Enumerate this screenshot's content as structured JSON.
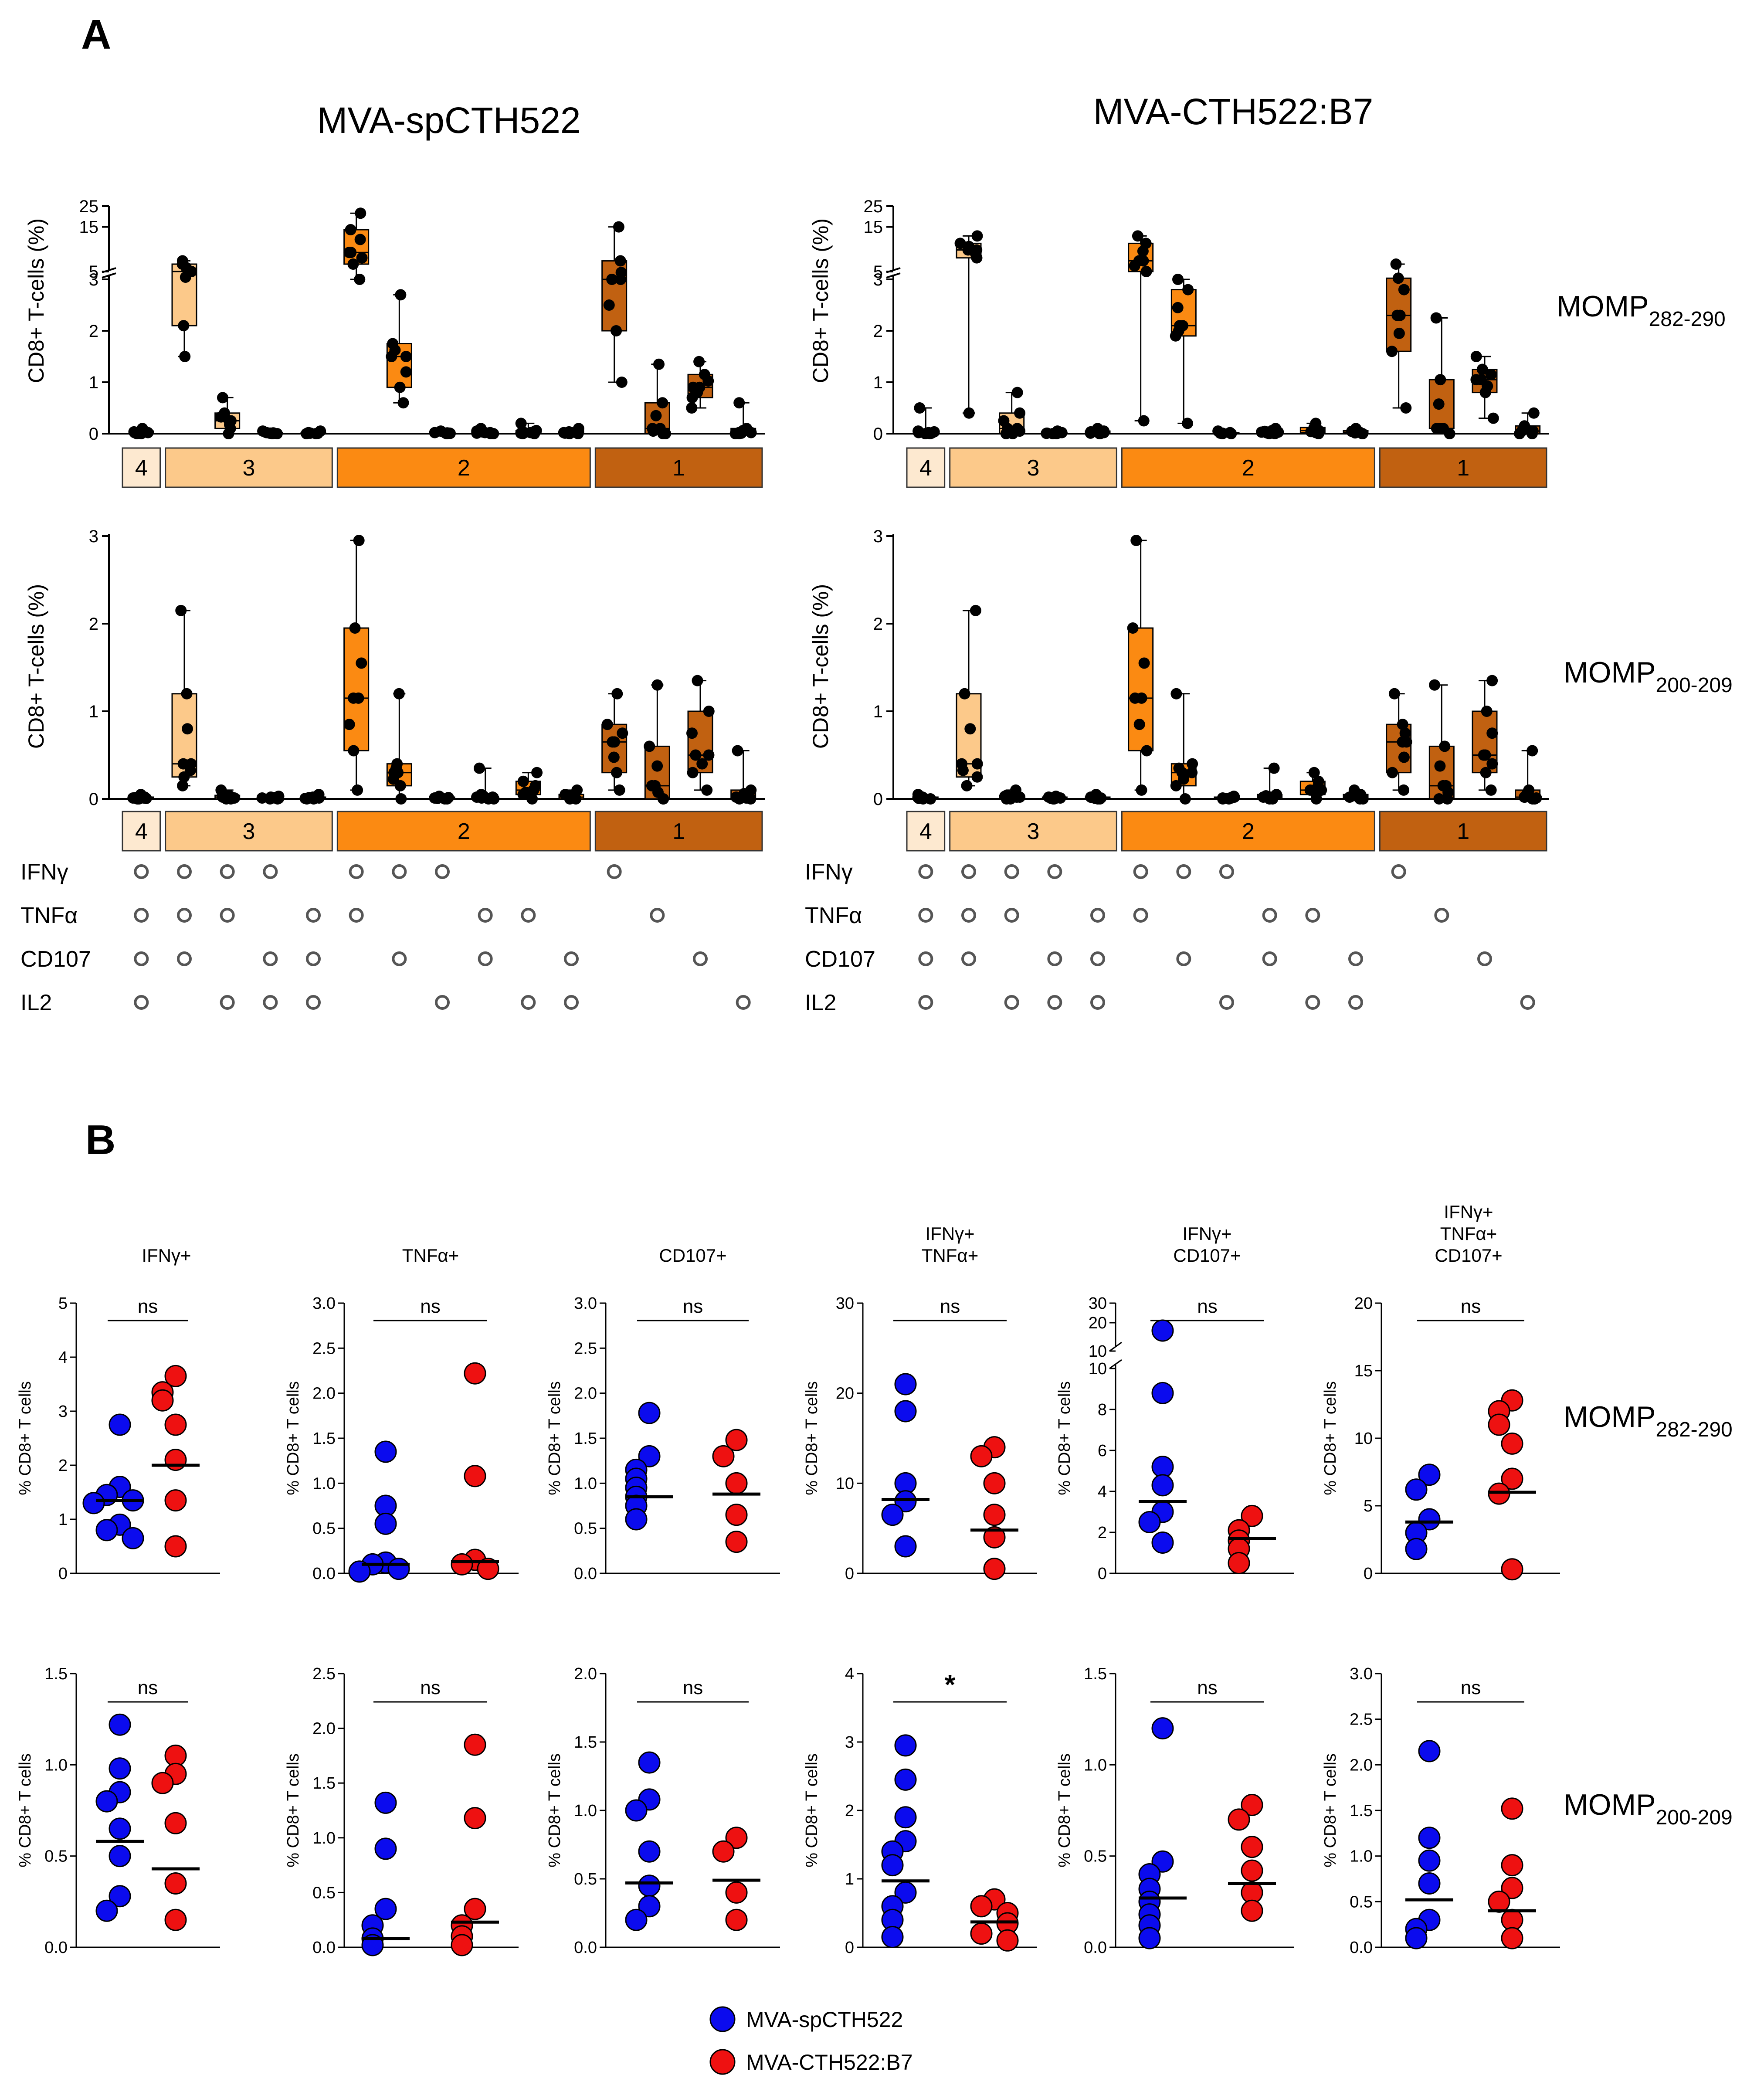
{
  "panel_labels": {
    "a": "A",
    "b": "B"
  },
  "panelA": {
    "col_titles": [
      "MVA-spCTH522",
      "MVA-CTH522:B7"
    ],
    "row_labels": [
      {
        "base": "MOMP",
        "sub": "282-290"
      },
      {
        "base": "MOMP",
        "sub": "200-209"
      }
    ],
    "ylabel": "CD8+ T-cells  (%)",
    "groups": [
      {
        "label": "4",
        "color": "#fde9d0",
        "n": 1
      },
      {
        "label": "3",
        "color": "#fcc98a",
        "n": 4
      },
      {
        "label": "2",
        "color": "#fb8a12",
        "n": 6
      },
      {
        "label": "1",
        "color": "#c16111",
        "n": 4
      }
    ],
    "markers": [
      "IFNγ",
      "TNFα",
      "CD107",
      "IL2"
    ],
    "combos": [
      [
        1,
        1,
        1,
        1
      ],
      [
        1,
        1,
        1,
        0
      ],
      [
        1,
        1,
        0,
        1
      ],
      [
        1,
        0,
        1,
        1
      ],
      [
        0,
        1,
        1,
        1
      ],
      [
        1,
        1,
        0,
        0
      ],
      [
        1,
        0,
        1,
        0
      ],
      [
        1,
        0,
        0,
        1
      ],
      [
        0,
        1,
        1,
        0
      ],
      [
        0,
        1,
        0,
        1
      ],
      [
        0,
        0,
        1,
        1
      ],
      [
        1,
        0,
        0,
        0
      ],
      [
        0,
        1,
        0,
        0
      ],
      [
        0,
        0,
        1,
        0
      ],
      [
        0,
        0,
        0,
        1
      ]
    ],
    "box_colors": [
      "#fde9d0",
      "#fcc98a",
      "#fcc98a",
      "#fcc98a",
      "#fcc98a",
      "#fb8a12",
      "#fb8a12",
      "#fb8a12",
      "#fb8a12",
      "#fb8a12",
      "#fb8a12",
      "#c16111",
      "#c16111",
      "#c16111",
      "#c16111"
    ],
    "top_y_ticks": [
      "0",
      "1",
      "2",
      "3",
      "5",
      "15",
      "25"
    ],
    "bottom_y_ticks": [
      "0",
      "1",
      "2",
      "3"
    ]
  },
  "chart_data": [
    {
      "type": "box",
      "title": "MVA-spCTH522 MOMP282-290",
      "ylabel": "CD8+ T-cells  (%)",
      "y_axis_broken": true,
      "ylim": [
        0,
        25
      ],
      "boxes": [
        {
          "min": 0,
          "q1": 0,
          "med": 0.02,
          "q3": 0.05,
          "max": 0.1
        },
        {
          "min": 1.5,
          "q1": 2.1,
          "med": 5,
          "q3": 6,
          "max": 6.5
        },
        {
          "min": 0,
          "q1": 0.1,
          "med": 0.25,
          "q3": 0.4,
          "max": 0.7
        },
        {
          "min": 0,
          "q1": 0,
          "med": 0.01,
          "q3": 0.02,
          "max": 0.05
        },
        {
          "min": 0,
          "q1": 0,
          "med": 0.01,
          "q3": 0.02,
          "max": 0.05
        },
        {
          "min": 3,
          "q1": 6,
          "med": 8,
          "q3": 14,
          "max": 21
        },
        {
          "min": 0.6,
          "q1": 0.9,
          "med": 1.5,
          "q3": 1.75,
          "max": 2.7
        },
        {
          "min": 0,
          "q1": 0,
          "med": 0.01,
          "q3": 0.02,
          "max": 0.05
        },
        {
          "min": 0,
          "q1": 0,
          "med": 0.02,
          "q3": 0.05,
          "max": 0.1
        },
        {
          "min": 0,
          "q1": 0,
          "med": 0.02,
          "q3": 0.06,
          "max": 0.2
        },
        {
          "min": 0,
          "q1": 0,
          "med": 0.02,
          "q3": 0.05,
          "max": 0.1
        },
        {
          "min": 1,
          "q1": 2,
          "med": 3,
          "q3": 6.5,
          "max": 15
        },
        {
          "min": 0,
          "q1": 0,
          "med": 0.1,
          "q3": 0.6,
          "max": 1.35
        },
        {
          "min": 0.5,
          "q1": 0.7,
          "med": 0.9,
          "q3": 1.15,
          "max": 1.4
        },
        {
          "min": 0,
          "q1": 0,
          "med": 0.02,
          "q3": 0.1,
          "max": 0.6
        }
      ]
    },
    {
      "type": "box",
      "title": "MVA-CTH522:B7 MOMP282-290",
      "ylabel": "CD8+ T-cells  (%)",
      "y_axis_broken": true,
      "ylim": [
        0,
        25
      ],
      "boxes": [
        {
          "min": 0,
          "q1": 0,
          "med": 0.02,
          "q3": 0.05,
          "max": 0.5
        },
        {
          "min": 0.4,
          "q1": 7,
          "med": 8.5,
          "q3": 10,
          "max": 12
        },
        {
          "min": 0,
          "q1": 0,
          "med": 0.1,
          "q3": 0.4,
          "max": 0.8
        },
        {
          "min": 0,
          "q1": 0,
          "med": 0.01,
          "q3": 0.02,
          "max": 0.05
        },
        {
          "min": 0,
          "q1": 0,
          "med": 0.02,
          "q3": 0.05,
          "max": 0.1
        },
        {
          "min": 0.25,
          "q1": 5,
          "med": 6.5,
          "q3": 10,
          "max": 12
        },
        {
          "min": 0.2,
          "q1": 1.9,
          "med": 2.1,
          "q3": 2.8,
          "max": 3
        },
        {
          "min": 0,
          "q1": 0,
          "med": 0.01,
          "q3": 0.02,
          "max": 0.05
        },
        {
          "min": 0,
          "q1": 0,
          "med": 0.03,
          "q3": 0.06,
          "max": 0.1
        },
        {
          "min": 0,
          "q1": 0.02,
          "med": 0.06,
          "q3": 0.12,
          "max": 0.2
        },
        {
          "min": 0,
          "q1": 0,
          "med": 0.03,
          "q3": 0.06,
          "max": 0.1
        },
        {
          "min": 0.5,
          "q1": 1.6,
          "med": 2.3,
          "q3": 3.3,
          "max": 6
        },
        {
          "min": 0,
          "q1": 0.1,
          "med": 0.1,
          "q3": 1.05,
          "max": 2.25
        },
        {
          "min": 0.3,
          "q1": 0.8,
          "med": 1.05,
          "q3": 1.25,
          "max": 1.5
        },
        {
          "min": 0,
          "q1": 0,
          "med": 0.05,
          "q3": 0.15,
          "max": 0.4
        }
      ]
    },
    {
      "type": "box",
      "title": "MVA-spCTH522 MOMP200-209",
      "ylabel": "CD8+ T-cells  (%)",
      "ylim": [
        0,
        3
      ],
      "boxes": [
        {
          "min": 0,
          "q1": 0,
          "med": 0.01,
          "q3": 0.02,
          "max": 0.05
        },
        {
          "min": 0.15,
          "q1": 0.25,
          "med": 0.4,
          "q3": 1.2,
          "max": 2.15
        },
        {
          "min": 0,
          "q1": 0,
          "med": 0.02,
          "q3": 0.04,
          "max": 0.1
        },
        {
          "min": 0,
          "q1": 0,
          "med": 0.01,
          "q3": 0.02,
          "max": 0.03
        },
        {
          "min": 0,
          "q1": 0,
          "med": 0.01,
          "q3": 0.02,
          "max": 0.05
        },
        {
          "min": 0.1,
          "q1": 0.55,
          "med": 1.15,
          "q3": 1.95,
          "max": 2.95
        },
        {
          "min": 0,
          "q1": 0.15,
          "med": 0.3,
          "q3": 0.4,
          "max": 1.2
        },
        {
          "min": 0,
          "q1": 0,
          "med": 0.01,
          "q3": 0.02,
          "max": 0.03
        },
        {
          "min": 0,
          "q1": 0,
          "med": 0.02,
          "q3": 0.05,
          "max": 0.35
        },
        {
          "min": 0,
          "q1": 0.05,
          "med": 0.1,
          "q3": 0.2,
          "max": 0.3
        },
        {
          "min": 0,
          "q1": 0,
          "med": 0.02,
          "q3": 0.05,
          "max": 0.1
        },
        {
          "min": 0.1,
          "q1": 0.3,
          "med": 0.65,
          "q3": 0.85,
          "max": 1.2
        },
        {
          "min": 0,
          "q1": 0,
          "med": 0.15,
          "q3": 0.6,
          "max": 1.3
        },
        {
          "min": 0.1,
          "q1": 0.3,
          "med": 0.5,
          "q3": 1,
          "max": 1.35
        },
        {
          "min": 0,
          "q1": 0,
          "med": 0.02,
          "q3": 0.1,
          "max": 0.55
        }
      ]
    },
    {
      "type": "box",
      "title": "MVA-CTH522:B7 MOMP200-209",
      "ylabel": "CD8+ T-cells  (%)",
      "ylim": [
        0,
        3
      ],
      "boxes": [
        {
          "min": 0,
          "q1": 0,
          "med": 0.01,
          "q3": 0.02,
          "max": 0.05
        },
        {
          "min": 0.15,
          "q1": 0.25,
          "med": 0.4,
          "q3": 1.2,
          "max": 2.15
        },
        {
          "min": 0,
          "q1": 0,
          "med": 0.02,
          "q3": 0.04,
          "max": 0.1
        },
        {
          "min": 0,
          "q1": 0,
          "med": 0.01,
          "q3": 0.02,
          "max": 0.03
        },
        {
          "min": 0,
          "q1": 0,
          "med": 0.01,
          "q3": 0.02,
          "max": 0.05
        },
        {
          "min": 0.1,
          "q1": 0.55,
          "med": 1.15,
          "q3": 1.95,
          "max": 2.95
        },
        {
          "min": 0,
          "q1": 0.15,
          "med": 0.3,
          "q3": 0.4,
          "max": 1.2
        },
        {
          "min": 0,
          "q1": 0,
          "med": 0.01,
          "q3": 0.02,
          "max": 0.03
        },
        {
          "min": 0,
          "q1": 0,
          "med": 0.02,
          "q3": 0.05,
          "max": 0.35
        },
        {
          "min": 0,
          "q1": 0.05,
          "med": 0.1,
          "q3": 0.2,
          "max": 0.3
        },
        {
          "min": 0,
          "q1": 0,
          "med": 0.02,
          "q3": 0.05,
          "max": 0.1
        },
        {
          "min": 0.1,
          "q1": 0.3,
          "med": 0.65,
          "q3": 0.85,
          "max": 1.2
        },
        {
          "min": 0,
          "q1": 0,
          "med": 0.15,
          "q3": 0.6,
          "max": 1.3
        },
        {
          "min": 0.1,
          "q1": 0.3,
          "med": 0.5,
          "q3": 1,
          "max": 1.35
        },
        {
          "min": 0,
          "q1": 0,
          "med": 0.02,
          "q3": 0.1,
          "max": 0.55
        }
      ]
    },
    {
      "type": "scatter",
      "row": "MOMP282-290",
      "ylabel": "% CD8+ T cells",
      "legend": [
        {
          "name": "MVA-spCTH522",
          "color": "#0b0bee"
        },
        {
          "name": "MVA-CTH522:B7",
          "color": "#ee1111"
        }
      ],
      "panels": [
        {
          "title": [
            "IFNγ+"
          ],
          "sig": "ns",
          "yticks": [
            "0",
            "1",
            "2",
            "3",
            "4",
            "5"
          ],
          "ylim": [
            0,
            5
          ],
          "blue": [
            2.75,
            1.6,
            1.45,
            1.35,
            1.3,
            0.9,
            0.8,
            0.65
          ],
          "red": [
            3.65,
            3.35,
            3.2,
            2.75,
            2.1,
            1.35,
            0.5
          ],
          "median": {
            "blue": 1.35,
            "red": 2.0
          }
        },
        {
          "title": [
            "TNFα+"
          ],
          "sig": "ns",
          "yticks": [
            "0.0",
            "0.5",
            "1.0",
            "1.5",
            "2.0",
            "2.5",
            "3.0"
          ],
          "ylim": [
            0,
            3
          ],
          "blue": [
            1.35,
            0.75,
            0.55,
            0.12,
            0.1,
            0.05,
            0.02
          ],
          "red": [
            2.22,
            1.08,
            0.15,
            0.1,
            0.05
          ],
          "median": {
            "blue": 0.1,
            "red": 0.13
          }
        },
        {
          "title": [
            "CD107+"
          ],
          "sig": "ns",
          "yticks": [
            "0.0",
            "0.5",
            "1.0",
            "1.5",
            "2.0",
            "2.5",
            "3.0"
          ],
          "ylim": [
            0,
            3
          ],
          "blue": [
            1.78,
            1.3,
            1.15,
            1.05,
            0.95,
            0.85,
            0.75,
            0.6
          ],
          "red": [
            1.48,
            1.3,
            1.0,
            0.65,
            0.35
          ],
          "median": {
            "blue": 0.85,
            "red": 0.88
          }
        },
        {
          "title": [
            "IFNγ+",
            "TNFα+"
          ],
          "sig": "ns",
          "yticks": [
            "0",
            "10",
            "20",
            "30"
          ],
          "ylim": [
            0,
            30
          ],
          "blue": [
            21,
            18,
            10,
            8,
            6.5,
            3
          ],
          "red": [
            14,
            13,
            10,
            6.5,
            4,
            0.5
          ],
          "median": {
            "blue": 8.2,
            "red": 4.8
          }
        },
        {
          "title": [
            "IFNγ+",
            "CD107+"
          ],
          "sig": "ns",
          "y_axis_broken": true,
          "yticks": [
            "0",
            "2",
            "4",
            "6",
            "8",
            "10",
            "10",
            "20",
            "30"
          ],
          "ylim": [
            0,
            30
          ],
          "blue": [
            16,
            8.8,
            5.2,
            4.3,
            3,
            2.5,
            1.5
          ],
          "red": [
            2.8,
            2.1,
            1.6,
            1.2,
            0.5
          ],
          "median": {
            "blue": 3.5,
            "red": 1.7
          }
        },
        {
          "title": [
            "IFNγ+",
            "TNFα+",
            "CD107+"
          ],
          "sig": "ns",
          "yticks": [
            "0",
            "5",
            "10",
            "15",
            "20"
          ],
          "ylim": [
            0,
            20
          ],
          "blue": [
            7.3,
            6.2,
            4,
            3,
            1.8
          ],
          "red": [
            12.8,
            12,
            11,
            9.6,
            7,
            5.9,
            0.3
          ],
          "median": {
            "blue": 3.8,
            "red": 6.0
          }
        }
      ]
    },
    {
      "type": "scatter",
      "row": "MOMP200-209",
      "ylabel": "% CD8+ T cells",
      "legend": [
        {
          "name": "MVA-spCTH522",
          "color": "#0b0bee"
        },
        {
          "name": "MVA-CTH522:B7",
          "color": "#ee1111"
        }
      ],
      "panels": [
        {
          "title": [],
          "sig": "ns",
          "yticks": [
            "0.0",
            "0.5",
            "1.0",
            "1.5"
          ],
          "ylim": [
            0,
            1.5
          ],
          "blue": [
            1.22,
            0.98,
            0.85,
            0.8,
            0.65,
            0.5,
            0.28,
            0.2
          ],
          "red": [
            1.05,
            0.95,
            0.9,
            0.68,
            0.35,
            0.15
          ],
          "median": {
            "blue": 0.58,
            "red": 0.43
          }
        },
        {
          "title": [],
          "sig": "ns",
          "yticks": [
            "0.0",
            "0.5",
            "1.0",
            "1.5",
            "2.0",
            "2.5"
          ],
          "ylim": [
            0,
            2.5
          ],
          "blue": [
            1.32,
            0.9,
            0.35,
            0.2,
            0.08,
            0.02
          ],
          "red": [
            1.85,
            1.18,
            0.35,
            0.2,
            0.1,
            0.02
          ],
          "median": {
            "blue": 0.08,
            "red": 0.23
          }
        },
        {
          "title": [],
          "sig": "ns",
          "yticks": [
            "0.0",
            "0.5",
            "1.0",
            "1.5",
            "2.0"
          ],
          "ylim": [
            0,
            2
          ],
          "blue": [
            1.35,
            1.08,
            1.0,
            0.7,
            0.45,
            0.3,
            0.2
          ],
          "red": [
            0.8,
            0.7,
            0.4,
            0.2
          ],
          "median": {
            "blue": 0.47,
            "red": 0.49
          }
        },
        {
          "title": [],
          "sig": "*",
          "yticks": [
            "0",
            "1",
            "2",
            "3",
            "4"
          ],
          "ylim": [
            0,
            4
          ],
          "blue": [
            2.95,
            2.45,
            1.9,
            1.55,
            1.4,
            1.2,
            0.8,
            0.6,
            0.4,
            0.15
          ],
          "red": [
            0.7,
            0.6,
            0.5,
            0.35,
            0.2,
            0.1
          ],
          "median": {
            "blue": 0.97,
            "red": 0.37
          }
        },
        {
          "title": [],
          "sig": "ns",
          "yticks": [
            "0.0",
            "0.5",
            "1.0",
            "1.5"
          ],
          "ylim": [
            0,
            1.5
          ],
          "blue": [
            1.2,
            0.47,
            0.4,
            0.32,
            0.25,
            0.18,
            0.12,
            0.05
          ],
          "red": [
            0.78,
            0.7,
            0.55,
            0.42,
            0.3,
            0.2
          ],
          "median": {
            "blue": 0.27,
            "red": 0.35
          }
        },
        {
          "title": [],
          "sig": "ns",
          "yticks": [
            "0.0",
            "0.5",
            "1.0",
            "1.5",
            "2.0",
            "2.5",
            "3.0"
          ],
          "ylim": [
            0,
            3
          ],
          "blue": [
            2.15,
            1.2,
            0.95,
            0.7,
            0.3,
            0.2,
            0.1
          ],
          "red": [
            1.52,
            0.9,
            0.65,
            0.5,
            0.3,
            0.1
          ],
          "median": {
            "blue": 0.52,
            "red": 0.4
          }
        }
      ]
    }
  ]
}
